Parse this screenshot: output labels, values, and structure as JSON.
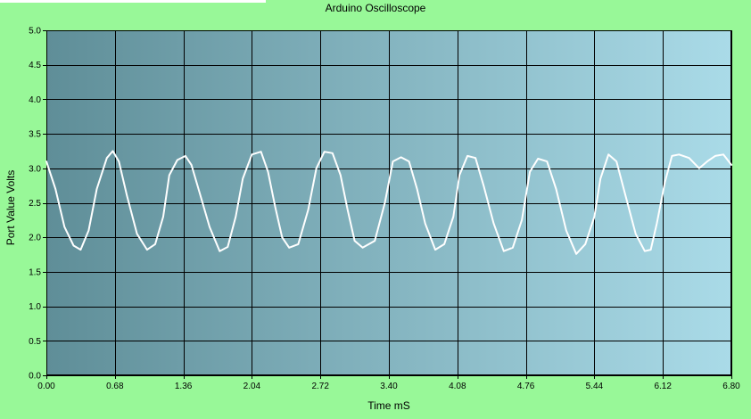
{
  "chart_data": {
    "type": "line",
    "title": "Arduino Oscilloscope",
    "xlabel": "Time mS",
    "ylabel": "Port Value Volts",
    "xlim": [
      0,
      6.8
    ],
    "ylim": [
      0,
      5
    ],
    "x_ticks": [
      "0.00",
      "0.68",
      "1.36",
      "2.04",
      "2.72",
      "3.40",
      "4.08",
      "4.76",
      "5.44",
      "6.12",
      "6.80"
    ],
    "y_ticks": [
      "0.0",
      "0.5",
      "1.0",
      "1.5",
      "2.0",
      "2.5",
      "3.0",
      "3.5",
      "4.0",
      "4.5",
      "5.0"
    ],
    "grid": true,
    "legend": "none",
    "colors": {
      "background": "#98f898",
      "plot_gradient_left": "#5f8e98",
      "plot_gradient_right": "#aadbe8",
      "grid": "#000000",
      "series": "#ffffff"
    },
    "series": [
      {
        "x": [
          0.0,
          0.09,
          0.18,
          0.27,
          0.34,
          0.42,
          0.5,
          0.6,
          0.66,
          0.72,
          0.8,
          0.9,
          1.0,
          1.08,
          1.16,
          1.22,
          1.3,
          1.38,
          1.44,
          1.52,
          1.62,
          1.72,
          1.8,
          1.88,
          1.95,
          2.04,
          2.13,
          2.2,
          2.27,
          2.34,
          2.41,
          2.5,
          2.6,
          2.68,
          2.76,
          2.84,
          2.92,
          2.99,
          3.06,
          3.14,
          3.26,
          3.36,
          3.44,
          3.52,
          3.6,
          3.68,
          3.76,
          3.86,
          3.95,
          4.04,
          4.1,
          4.18,
          4.26,
          4.34,
          4.44,
          4.54,
          4.63,
          4.72,
          4.8,
          4.88,
          4.97,
          5.06,
          5.16,
          5.26,
          5.35,
          5.44,
          5.5,
          5.58,
          5.66,
          5.75,
          5.85,
          5.94,
          6.0,
          6.06,
          6.14,
          6.21,
          6.28,
          6.38,
          6.48,
          6.56,
          6.64,
          6.72,
          6.8
        ],
        "y": [
          3.1,
          2.7,
          2.15,
          1.88,
          1.82,
          2.1,
          2.7,
          3.15,
          3.25,
          3.1,
          2.6,
          2.05,
          1.82,
          1.9,
          2.3,
          2.9,
          3.12,
          3.18,
          3.05,
          2.65,
          2.15,
          1.8,
          1.86,
          2.3,
          2.85,
          3.2,
          3.24,
          2.95,
          2.45,
          2.0,
          1.85,
          1.9,
          2.4,
          3.0,
          3.24,
          3.22,
          2.9,
          2.4,
          1.95,
          1.85,
          1.95,
          2.5,
          3.1,
          3.16,
          3.1,
          2.7,
          2.2,
          1.82,
          1.9,
          2.3,
          2.9,
          3.18,
          3.15,
          2.75,
          2.2,
          1.8,
          1.85,
          2.25,
          2.95,
          3.14,
          3.1,
          2.7,
          2.1,
          1.76,
          1.9,
          2.3,
          2.85,
          3.2,
          3.1,
          2.6,
          2.05,
          1.8,
          1.82,
          2.2,
          2.8,
          3.18,
          3.2,
          3.15,
          3.0,
          3.1,
          3.18,
          3.2,
          3.05
        ]
      }
    ]
  }
}
